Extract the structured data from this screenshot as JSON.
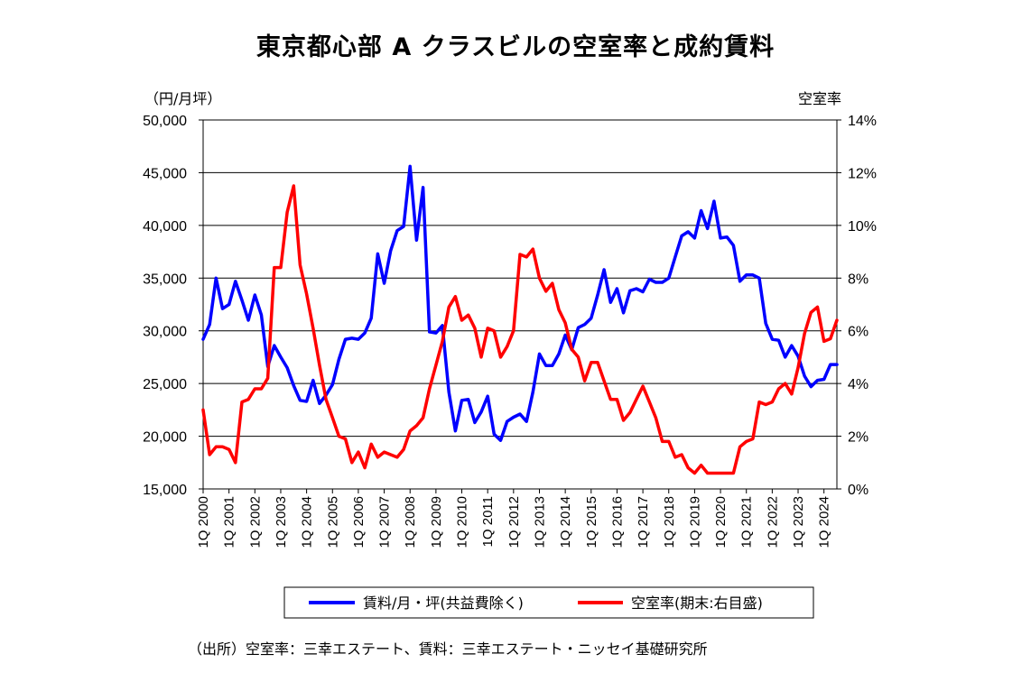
{
  "title": "東京都心部 A クラスビルの空室率と成約賃料",
  "left_axis_unit": "（円/月坪）",
  "right_axis_unit": "空室率",
  "source": "（出所）空室率：三幸エステート、賃料：三幸エステート・ニッセイ基礎研究所",
  "colors": {
    "rent": "#0000FF",
    "vacancy": "#FF0000"
  },
  "chart_data": {
    "type": "line",
    "title": "東京都心部 A クラスビルの空室率と成約賃料",
    "x_ticks": [
      "1Q 2000",
      "1Q 2001",
      "1Q 2002",
      "1Q 2003",
      "1Q 2004",
      "1Q 2005",
      "1Q 2006",
      "1Q 2007",
      "1Q 2008",
      "1Q 2009",
      "1Q 2010",
      "1Q 2011",
      "1Q 2012",
      "1Q 2013",
      "1Q 2014",
      "1Q 2015",
      "1Q 2016",
      "1Q 2017",
      "1Q 2018",
      "1Q 2019",
      "1Q 2020",
      "1Q 2021",
      "1Q 2022",
      "1Q 2023",
      "1Q 2024"
    ],
    "x_range": [
      "1Q 2000",
      "3Q 2024"
    ],
    "y_left": {
      "label": "（円/月坪）",
      "range": [
        15000,
        50000
      ],
      "ticks": [
        "15,000",
        "20,000",
        "25,000",
        "30,000",
        "35,000",
        "40,000",
        "45,000",
        "50,000"
      ]
    },
    "y_right": {
      "label": "空室率",
      "range": [
        0,
        14
      ],
      "ticks": [
        "0%",
        "2%",
        "4%",
        "6%",
        "8%",
        "10%",
        "12%",
        "14%"
      ]
    },
    "legend_position": "bottom",
    "series": [
      {
        "name": "賃料/月・坪(共益費除く)",
        "axis": "left",
        "values": [
          29200,
          30600,
          35000,
          32100,
          32500,
          34700,
          32900,
          31000,
          33400,
          31500,
          26600,
          28600,
          27500,
          26500,
          24800,
          23400,
          23300,
          25300,
          23100,
          23900,
          24900,
          27300,
          29200,
          29300,
          29200,
          29800,
          31200,
          37300,
          34500,
          37600,
          39500,
          39900,
          45600,
          38600,
          43600,
          29900,
          29800,
          30500,
          24200,
          20500,
          23400,
          23500,
          21300,
          22300,
          23800,
          20200,
          19600,
          21400,
          21800,
          22100,
          21400,
          24200,
          27800,
          26700,
          26700,
          27800,
          29600,
          28200,
          30300,
          30600,
          31200,
          33400,
          35800,
          32700,
          34000,
          31700,
          33800,
          34000,
          33700,
          34900,
          34600,
          34600,
          35000,
          37000,
          39000,
          39400,
          38800,
          41400,
          39700,
          42300,
          38800,
          38900,
          38100,
          34700,
          35300,
          35300,
          35000,
          30700,
          29200,
          29100,
          27500,
          28600,
          27600,
          25700,
          24700,
          25300,
          25400,
          26800,
          26800
        ]
      },
      {
        "name": "空室率(期末:右目盛)",
        "axis": "right",
        "values": [
          3.0,
          1.3,
          1.6,
          1.6,
          1.5,
          1.0,
          3.3,
          3.4,
          3.8,
          3.8,
          4.2,
          8.4,
          8.4,
          10.5,
          11.5,
          8.5,
          7.4,
          6.1,
          4.7,
          3.4,
          2.7,
          2.0,
          1.9,
          1.0,
          1.4,
          0.8,
          1.7,
          1.2,
          1.4,
          1.3,
          1.2,
          1.5,
          2.2,
          2.4,
          2.7,
          3.8,
          4.7,
          5.6,
          6.9,
          7.3,
          6.4,
          6.6,
          6.1,
          5.0,
          6.1,
          6.0,
          5.0,
          5.4,
          6.0,
          8.9,
          8.8,
          9.1,
          8.0,
          7.5,
          7.8,
          6.8,
          6.3,
          5.3,
          5.0,
          4.1,
          4.8,
          4.8,
          4.1,
          3.4,
          3.4,
          2.6,
          2.9,
          3.4,
          3.9,
          3.3,
          2.7,
          1.8,
          1.8,
          1.2,
          1.3,
          0.8,
          0.6,
          0.9,
          0.6,
          0.6,
          0.6,
          0.6,
          0.6,
          1.6,
          1.8,
          1.9,
          3.3,
          3.2,
          3.3,
          3.8,
          4.0,
          3.6,
          4.6,
          5.9,
          6.7,
          6.9,
          5.6,
          5.7,
          6.4
        ]
      }
    ]
  }
}
